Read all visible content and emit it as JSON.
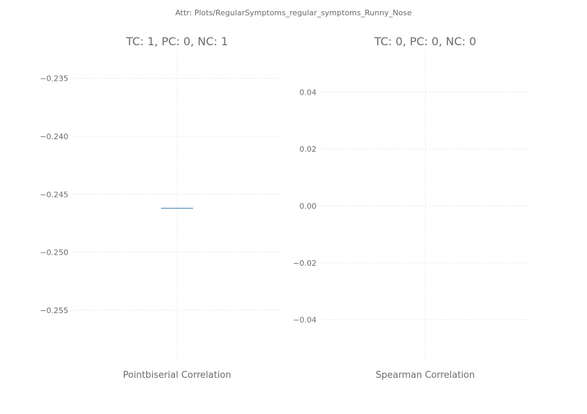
{
  "figure": {
    "suptitle": "Attr: Plots/RegularSymptoms_regular_symptoms_Runny_Nose"
  },
  "chart_data": [
    {
      "type": "box",
      "title": "TC: 1, PC: 0, NC: 1",
      "xlabel": "Pointbiserial Correlation",
      "ylabel": "",
      "ylim": [
        -0.2595,
        -0.2325
      ],
      "yticks": [
        -0.235,
        -0.24,
        -0.245,
        -0.25,
        -0.255
      ],
      "ytick_labels": [
        "−0.235",
        "−0.240",
        "−0.245",
        "−0.250",
        "−0.255"
      ],
      "grid": true,
      "values": [
        -0.2462
      ],
      "median": -0.2462,
      "color": "#4c86b2"
    },
    {
      "type": "box",
      "title": "TC: 0, PC: 0, NC: 0",
      "xlabel": "Spearman Correlation",
      "ylabel": "",
      "ylim": [
        -0.055,
        0.055
      ],
      "yticks": [
        0.04,
        0.02,
        0.0,
        -0.02,
        -0.04
      ],
      "ytick_labels": [
        "0.04",
        "0.02",
        "0.00",
        "−0.02",
        "−0.04"
      ],
      "grid": true,
      "values": []
    }
  ]
}
